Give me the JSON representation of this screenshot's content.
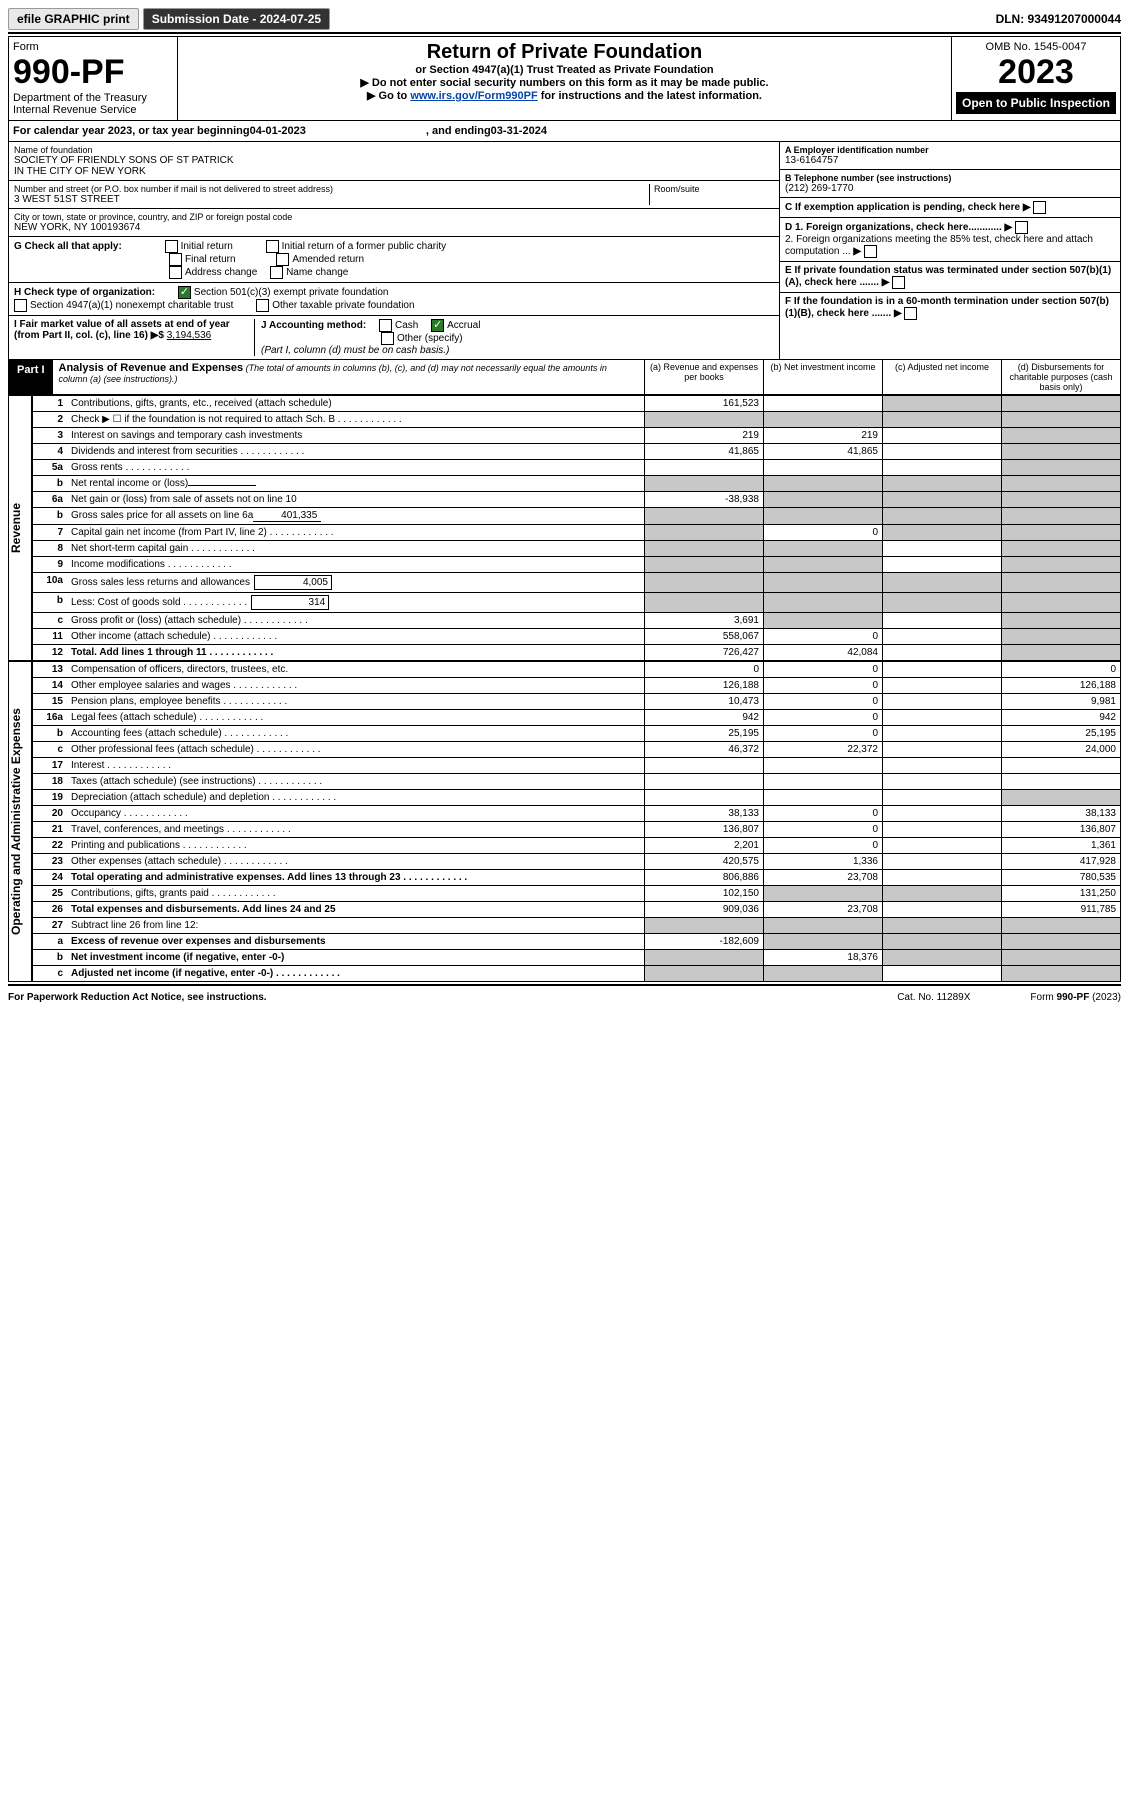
{
  "top": {
    "efile": "efile GRAPHIC print",
    "sub_label": "Submission Date - 2024-07-25",
    "dln": "DLN: 93491207000044"
  },
  "header": {
    "form_word": "Form",
    "form_num": "990-PF",
    "dept": "Department of the Treasury",
    "irs": "Internal Revenue Service",
    "title": "Return of Private Foundation",
    "subtitle": "or Section 4947(a)(1) Trust Treated as Private Foundation",
    "note1": "▶ Do not enter social security numbers on this form as it may be made public.",
    "note2_pre": "▶ Go to ",
    "note2_link": "www.irs.gov/Form990PF",
    "note2_post": " for instructions and the latest information.",
    "omb": "OMB No. 1545-0047",
    "year": "2023",
    "open": "Open to Public Inspection"
  },
  "cal": {
    "text_pre": "For calendar year 2023, or tax year beginning ",
    "begin": "04-01-2023",
    "mid": " , and ending ",
    "end": "03-31-2024"
  },
  "left": {
    "name_label": "Name of foundation",
    "name1": "SOCIETY OF FRIENDLY SONS OF ST PATRICK",
    "name2": "IN THE CITY OF NEW YORK",
    "addr_label": "Number and street (or P.O. box number if mail is not delivered to street address)",
    "addr": "3 WEST 51ST STREET",
    "room_label": "Room/suite",
    "city_label": "City or town, state or province, country, and ZIP or foreign postal code",
    "city": "NEW YORK, NY  100193674"
  },
  "right": {
    "a_label": "A Employer identification number",
    "a_val": "13-6164757",
    "b_label": "B Telephone number (see instructions)",
    "b_val": "(212) 269-1770",
    "c_label": "C If exemption application is pending, check here",
    "d1": "D 1. Foreign organizations, check here............",
    "d2": "2. Foreign organizations meeting the 85% test, check here and attach computation ...",
    "e": "E  If private foundation status was terminated under section 507(b)(1)(A), check here .......",
    "f": "F  If the foundation is in a 60-month termination under section 507(b)(1)(B), check here ......."
  },
  "g": {
    "label": "G Check all that apply:",
    "opts": [
      "Initial return",
      "Final return",
      "Address change",
      "Initial return of a former public charity",
      "Amended return",
      "Name change"
    ]
  },
  "h": {
    "label": "H Check type of organization:",
    "o1": "Section 501(c)(3) exempt private foundation",
    "o2": "Section 4947(a)(1) nonexempt charitable trust",
    "o3": "Other taxable private foundation"
  },
  "i": {
    "label": "I Fair market value of all assets at end of year (from Part II, col. (c), line 16)",
    "arrow": "▶$",
    "val": "3,194,536"
  },
  "j": {
    "label": "J Accounting method:",
    "cash": "Cash",
    "accrual": "Accrual",
    "other": "Other (specify)",
    "note": "(Part I, column (d) must be on cash basis.)"
  },
  "part1": {
    "hdr": "Part I",
    "title": "Analysis of Revenue and Expenses",
    "note": " (The total of amounts in columns (b), (c), and (d) may not necessarily equal the amounts in column (a) (see instructions).)",
    "col_a": "(a)  Revenue and expenses per books",
    "col_b": "(b)  Net investment income",
    "col_c": "(c)  Adjusted net income",
    "col_d": "(d)  Disbursements for charitable purposes (cash basis only)"
  },
  "side": {
    "rev": "Revenue",
    "exp": "Operating and Administrative Expenses"
  },
  "rows": [
    {
      "n": "1",
      "d": "Contributions, gifts, grants, etc., received (attach schedule)",
      "a": "161,523",
      "b": "",
      "c_grey": true,
      "d_grey": true
    },
    {
      "n": "2",
      "d": "Check ▶ ☐ if the foundation is not required to attach Sch. B",
      "dots": true,
      "a_grey": true,
      "b_grey": true,
      "c_grey": true,
      "d_grey": true
    },
    {
      "n": "3",
      "d": "Interest on savings and temporary cash investments",
      "a": "219",
      "b": "219",
      "d_grey": true
    },
    {
      "n": "4",
      "d": "Dividends and interest from securities",
      "dots": true,
      "a": "41,865",
      "b": "41,865",
      "d_grey": true
    },
    {
      "n": "5a",
      "d": "Gross rents",
      "dots": true,
      "d_grey": true
    },
    {
      "n": "b",
      "d": "Net rental income or (loss)",
      "inline": "",
      "a_grey": true,
      "b_grey": true,
      "c_grey": true,
      "d_grey": true
    },
    {
      "n": "6a",
      "d": "Net gain or (loss) from sale of assets not on line 10",
      "a": "-38,938",
      "b_grey": true,
      "c_grey": true,
      "d_grey": true
    },
    {
      "n": "b",
      "d": "Gross sales price for all assets on line 6a",
      "inline": "401,335",
      "a_grey": true,
      "b_grey": true,
      "c_grey": true,
      "d_grey": true
    },
    {
      "n": "7",
      "d": "Capital gain net income (from Part IV, line 2)",
      "dots": true,
      "a_grey": true,
      "b": "0",
      "c_grey": true,
      "d_grey": true
    },
    {
      "n": "8",
      "d": "Net short-term capital gain",
      "dots": true,
      "a_grey": true,
      "b_grey": true,
      "d_grey": true
    },
    {
      "n": "9",
      "d": "Income modifications",
      "dots": true,
      "a_grey": true,
      "b_grey": true,
      "d_grey": true
    },
    {
      "n": "10a",
      "d": "Gross sales less returns and allowances",
      "box": "4,005",
      "a_grey": true,
      "b_grey": true,
      "c_grey": true,
      "d_grey": true
    },
    {
      "n": "b",
      "d": "Less: Cost of goods sold",
      "dots": true,
      "box": "314",
      "a_grey": true,
      "b_grey": true,
      "c_grey": true,
      "d_grey": true
    },
    {
      "n": "c",
      "d": "Gross profit or (loss) (attach schedule)",
      "dots": true,
      "a": "3,691",
      "b_grey": true,
      "d_grey": true
    },
    {
      "n": "11",
      "d": "Other income (attach schedule)",
      "dots": true,
      "a": "558,067",
      "b": "0",
      "d_grey": true
    },
    {
      "n": "12",
      "d": "Total. Add lines 1 through 11",
      "dots": true,
      "bold": true,
      "a": "726,427",
      "b": "42,084",
      "d_grey": true
    }
  ],
  "exp_rows": [
    {
      "n": "13",
      "d": "Compensation of officers, directors, trustees, etc.",
      "a": "0",
      "b": "0",
      "dd": "0"
    },
    {
      "n": "14",
      "d": "Other employee salaries and wages",
      "dots": true,
      "a": "126,188",
      "b": "0",
      "dd": "126,188"
    },
    {
      "n": "15",
      "d": "Pension plans, employee benefits",
      "dots": true,
      "a": "10,473",
      "b": "0",
      "dd": "9,981"
    },
    {
      "n": "16a",
      "d": "Legal fees (attach schedule)",
      "dots": true,
      "a": "942",
      "b": "0",
      "dd": "942"
    },
    {
      "n": "b",
      "d": "Accounting fees (attach schedule)",
      "dots": true,
      "a": "25,195",
      "b": "0",
      "dd": "25,195"
    },
    {
      "n": "c",
      "d": "Other professional fees (attach schedule)",
      "dots": true,
      "a": "46,372",
      "b": "22,372",
      "dd": "24,000"
    },
    {
      "n": "17",
      "d": "Interest",
      "dots": true
    },
    {
      "n": "18",
      "d": "Taxes (attach schedule) (see instructions)",
      "dots": true
    },
    {
      "n": "19",
      "d": "Depreciation (attach schedule) and depletion",
      "dots": true,
      "d_grey": true
    },
    {
      "n": "20",
      "d": "Occupancy",
      "dots": true,
      "a": "38,133",
      "b": "0",
      "dd": "38,133"
    },
    {
      "n": "21",
      "d": "Travel, conferences, and meetings",
      "dots": true,
      "a": "136,807",
      "b": "0",
      "dd": "136,807"
    },
    {
      "n": "22",
      "d": "Printing and publications",
      "dots": true,
      "a": "2,201",
      "b": "0",
      "dd": "1,361"
    },
    {
      "n": "23",
      "d": "Other expenses (attach schedule)",
      "dots": true,
      "a": "420,575",
      "b": "1,336",
      "dd": "417,928"
    },
    {
      "n": "24",
      "d": "Total operating and administrative expenses. Add lines 13 through 23",
      "dots": true,
      "bold": true,
      "a": "806,886",
      "b": "23,708",
      "dd": "780,535"
    },
    {
      "n": "25",
      "d": "Contributions, gifts, grants paid",
      "dots": true,
      "a": "102,150",
      "b_grey": true,
      "c_grey": true,
      "dd": "131,250"
    },
    {
      "n": "26",
      "d": "Total expenses and disbursements. Add lines 24 and 25",
      "bold": true,
      "a": "909,036",
      "b": "23,708",
      "dd": "911,785"
    },
    {
      "n": "27",
      "d": "Subtract line 26 from line 12:",
      "a_grey": true,
      "b_grey": true,
      "c_grey": true,
      "d_grey": true
    },
    {
      "n": "a",
      "d": "Excess of revenue over expenses and disbursements",
      "bold": true,
      "a": "-182,609",
      "b_grey": true,
      "c_grey": true,
      "d_grey": true
    },
    {
      "n": "b",
      "d": "Net investment income (if negative, enter -0-)",
      "bold": true,
      "a_grey": true,
      "b": "18,376",
      "c_grey": true,
      "d_grey": true
    },
    {
      "n": "c",
      "d": "Adjusted net income (if negative, enter -0-)",
      "dots": true,
      "bold": true,
      "a_grey": true,
      "b_grey": true,
      "d_grey": true
    }
  ],
  "footer": {
    "left": "For Paperwork Reduction Act Notice, see instructions.",
    "mid": "Cat. No. 11289X",
    "right": "Form 990-PF (2023)"
  }
}
